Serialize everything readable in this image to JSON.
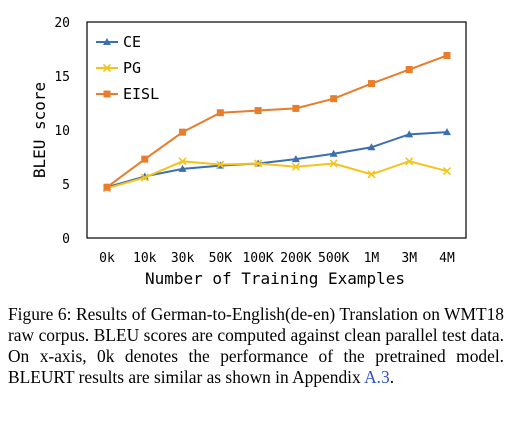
{
  "chart_data": {
    "type": "line",
    "categories": [
      "0k",
      "10k",
      "30k",
      "50K",
      "100K",
      "200K",
      "500K",
      "1M",
      "3M",
      "4M"
    ],
    "ylabel": "BLEU score",
    "xlabel": "Number of Training Examples",
    "ylim": [
      0,
      20
    ],
    "yticks": [
      0,
      5,
      10,
      15,
      20
    ],
    "grid": false,
    "legend_position": "top-left",
    "series": [
      {
        "name": "CE",
        "color": "#3a6fb0",
        "marker": "triangle",
        "values": [
          4.7,
          5.7,
          6.4,
          6.7,
          6.9,
          7.3,
          7.8,
          8.4,
          9.6,
          9.8
        ]
      },
      {
        "name": "PG",
        "color": "#f5c31c",
        "marker": "x",
        "values": [
          4.6,
          5.6,
          7.1,
          6.8,
          6.9,
          6.6,
          6.9,
          5.9,
          7.1,
          6.2
        ]
      },
      {
        "name": "EISL",
        "color": "#e87d2c",
        "marker": "square",
        "values": [
          4.7,
          7.3,
          9.8,
          11.6,
          11.8,
          12.0,
          12.9,
          14.3,
          15.6,
          16.9
        ]
      }
    ]
  },
  "caption": {
    "prefix": "Figure 6:  Results of German-to-English(de-en) Translation on WMT18 raw corpus.  BLEU scores are computed against clean parallel test data.  On x-axis, 0k denotes the performance of the pretrained model. BLEURT results are similar as shown in Appendix ",
    "link": "A.3",
    "suffix": "."
  }
}
